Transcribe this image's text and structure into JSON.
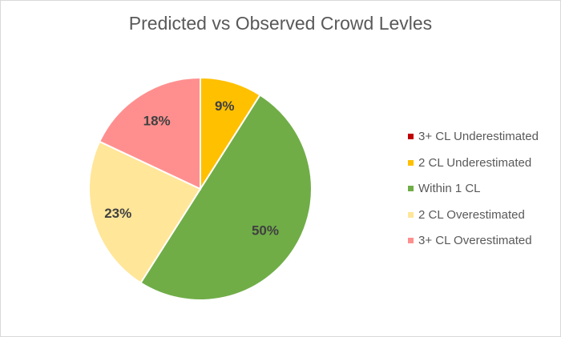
{
  "chart_data": {
    "type": "pie",
    "title": "Predicted vs Observed Crowd Levles",
    "categories": [
      "3+ CL Underestimated",
      "2 CL Underestimated",
      "Within 1 CL",
      "2 CL Overestimated",
      "3+ CL Overestimated"
    ],
    "values": [
      0,
      9,
      50,
      23,
      18
    ],
    "data_labels": [
      "",
      "9%",
      "50%",
      "23%",
      "18%"
    ],
    "colors": [
      "#c00000",
      "#ffc000",
      "#70ad47",
      "#ffe699",
      "#ff8f8f"
    ],
    "start_angle_deg": 0,
    "direction": "clockwise",
    "legend_position": "right"
  }
}
